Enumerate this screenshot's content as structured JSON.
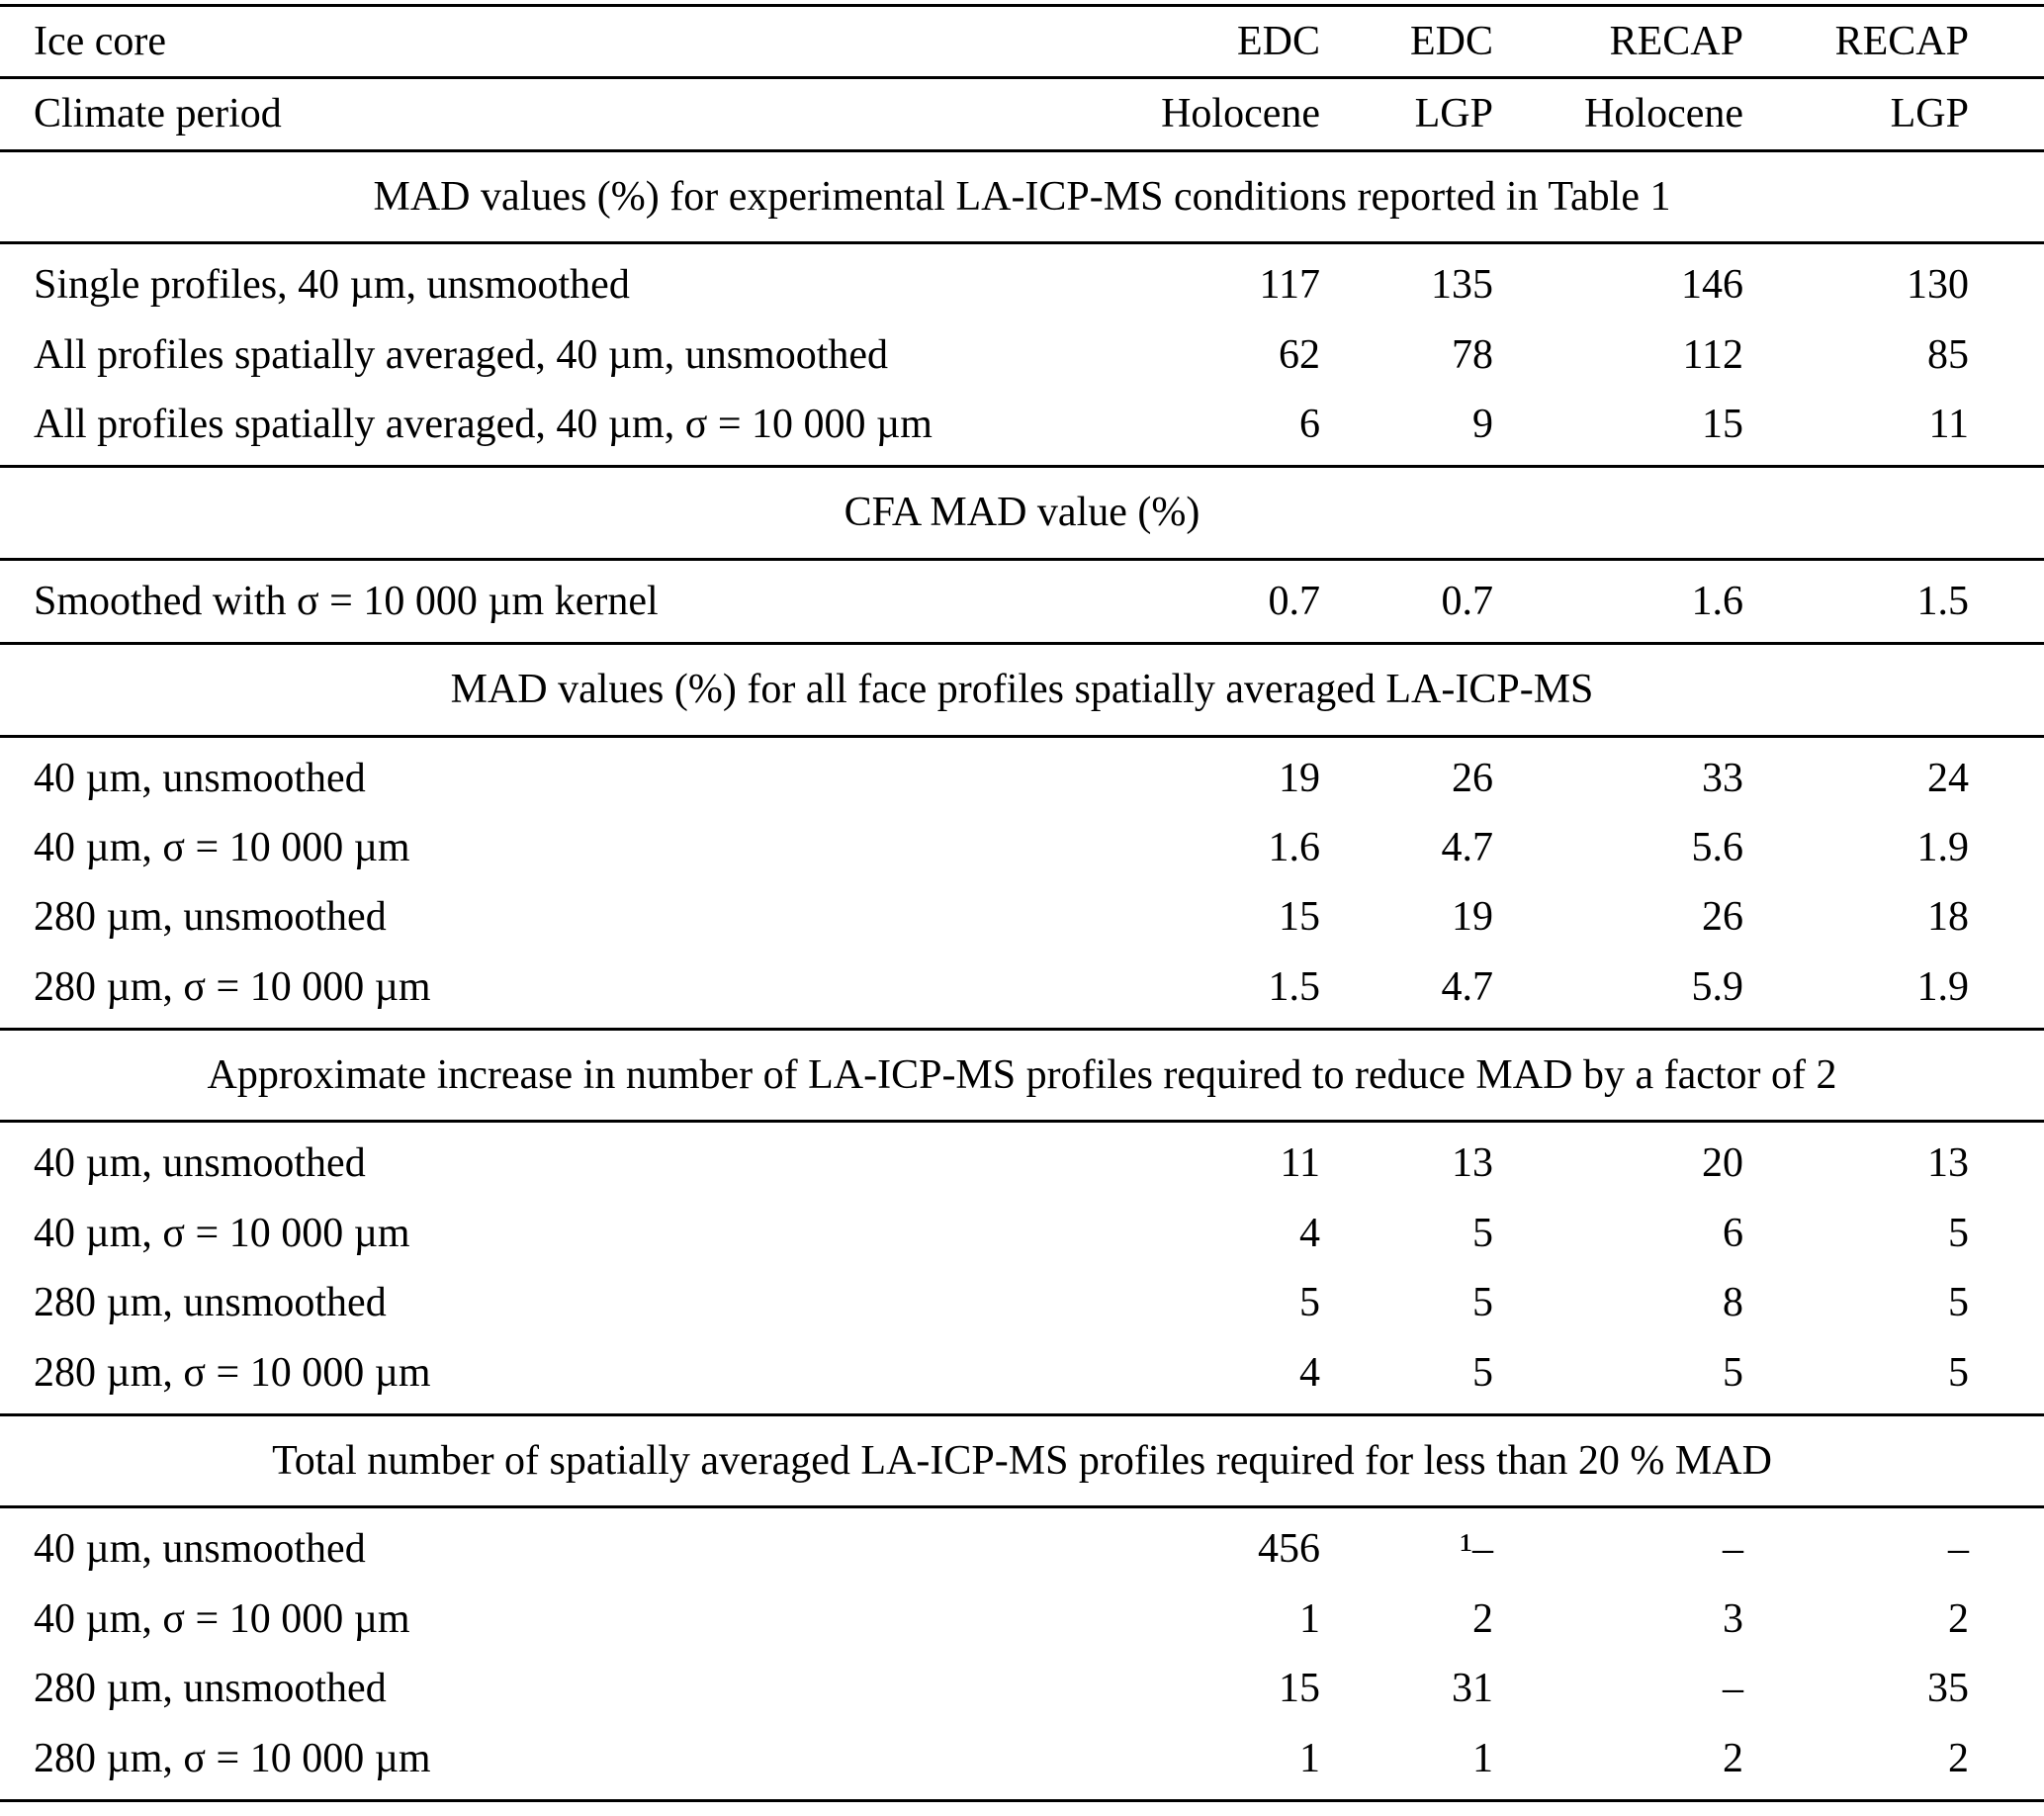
{
  "table": {
    "header": {
      "row1": {
        "label": "Ice core",
        "values": [
          "EDC",
          "EDC",
          "RECAP",
          "RECAP"
        ]
      },
      "row2": {
        "label": "Climate period",
        "values": [
          "Holocene",
          "LGP",
          "Holocene",
          "LGP"
        ]
      }
    },
    "sections": [
      {
        "title": "MAD values (%) for experimental LA-ICP-MS conditions reported in Table 1",
        "rows": [
          {
            "label": "Single profiles, 40 µm, unsmoothed",
            "values": [
              "117",
              "135",
              "146",
              "130"
            ]
          },
          {
            "label": "All profiles spatially averaged, 40 µm, unsmoothed",
            "values": [
              "62",
              "78",
              "112",
              "85"
            ]
          },
          {
            "label": "All profiles spatially averaged, 40 µm, σ = 10 000 µm",
            "values": [
              "6",
              "9",
              "15",
              "11"
            ]
          }
        ]
      },
      {
        "title": "CFA MAD value (%)",
        "rows": [
          {
            "label": "Smoothed with σ = 10 000 µm kernel",
            "values": [
              "0.7",
              "0.7",
              "1.6",
              "1.5"
            ]
          }
        ]
      },
      {
        "title": "MAD values (%) for all face profiles spatially averaged LA-ICP-MS",
        "rows": [
          {
            "label": "40 µm, unsmoothed",
            "values": [
              "19",
              "26",
              "33",
              "24"
            ]
          },
          {
            "label": "40 µm, σ = 10 000 µm",
            "values": [
              "1.6",
              "4.7",
              "5.6",
              "1.9"
            ]
          },
          {
            "label": "280 µm, unsmoothed",
            "values": [
              "15",
              "19",
              "26",
              "18"
            ]
          },
          {
            "label": "280 µm, σ = 10 000 µm",
            "values": [
              "1.5",
              "4.7",
              "5.9",
              "1.9"
            ]
          }
        ]
      },
      {
        "title": "Approximate increase in number of LA-ICP-MS profiles required to reduce MAD by a factor of 2",
        "rows": [
          {
            "label": "40 µm, unsmoothed",
            "values": [
              "11",
              "13",
              "20",
              "13"
            ]
          },
          {
            "label": "40 µm, σ = 10 000 µm",
            "values": [
              "4",
              "5",
              "6",
              "5"
            ]
          },
          {
            "label": "280 µm, unsmoothed",
            "values": [
              "5",
              "5",
              "8",
              "5"
            ]
          },
          {
            "label": "280 µm, σ = 10 000 µm",
            "values": [
              "4",
              "5",
              "5",
              "5"
            ]
          }
        ]
      },
      {
        "title": "Total number of spatially averaged LA-ICP-MS profiles required for less than 20 % MAD",
        "rows": [
          {
            "label": "40 µm, unsmoothed",
            "values": [
              "456",
              "¹–",
              "–",
              "–"
            ]
          },
          {
            "label": "40 µm, σ = 10 000 µm",
            "values": [
              "1",
              "2",
              "3",
              "2"
            ]
          },
          {
            "label": "280 µm, unsmoothed",
            "values": [
              "15",
              "31",
              "–",
              "35"
            ]
          },
          {
            "label": "280 µm, σ = 10 000 µm",
            "values": [
              "1",
              "1",
              "2",
              "2"
            ]
          }
        ]
      }
    ]
  }
}
